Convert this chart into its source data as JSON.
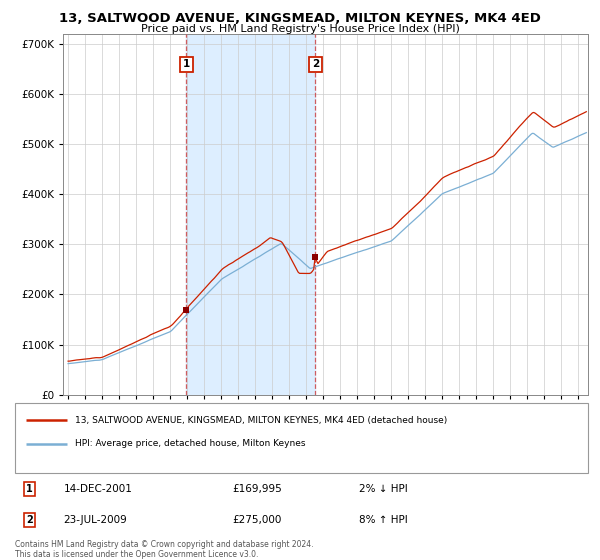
{
  "title": "13, SALTWOOD AVENUE, KINGSMEAD, MILTON KEYNES, MK4 4ED",
  "subtitle": "Price paid vs. HM Land Registry's House Price Index (HPI)",
  "background_color": "#ffffff",
  "plot_bg_color": "#ffffff",
  "grid_color": "#cccccc",
  "hpi_color": "#7bafd4",
  "price_color": "#cc2200",
  "shade_color": "#ddeeff",
  "dashed_color": "#cc4444",
  "sale1_date_num": 2001.958,
  "sale1_price": 169995,
  "sale1_label": "1",
  "sale1_text": "14-DEC-2001",
  "sale1_pct": "2% ↓ HPI",
  "sale2_date_num": 2009.55,
  "sale2_price": 275000,
  "sale2_label": "2",
  "sale2_text": "23-JUL-2009",
  "sale2_pct": "8% ↑ HPI",
  "legend1": "13, SALTWOOD AVENUE, KINGSMEAD, MILTON KEYNES, MK4 4ED (detached house)",
  "legend2": "HPI: Average price, detached house, Milton Keynes",
  "footer1": "Contains HM Land Registry data © Crown copyright and database right 2024.",
  "footer2": "This data is licensed under the Open Government Licence v3.0.",
  "ylim_max": 720000,
  "ylim_min": 0,
  "xmin": 1994.7,
  "xmax": 2025.6
}
